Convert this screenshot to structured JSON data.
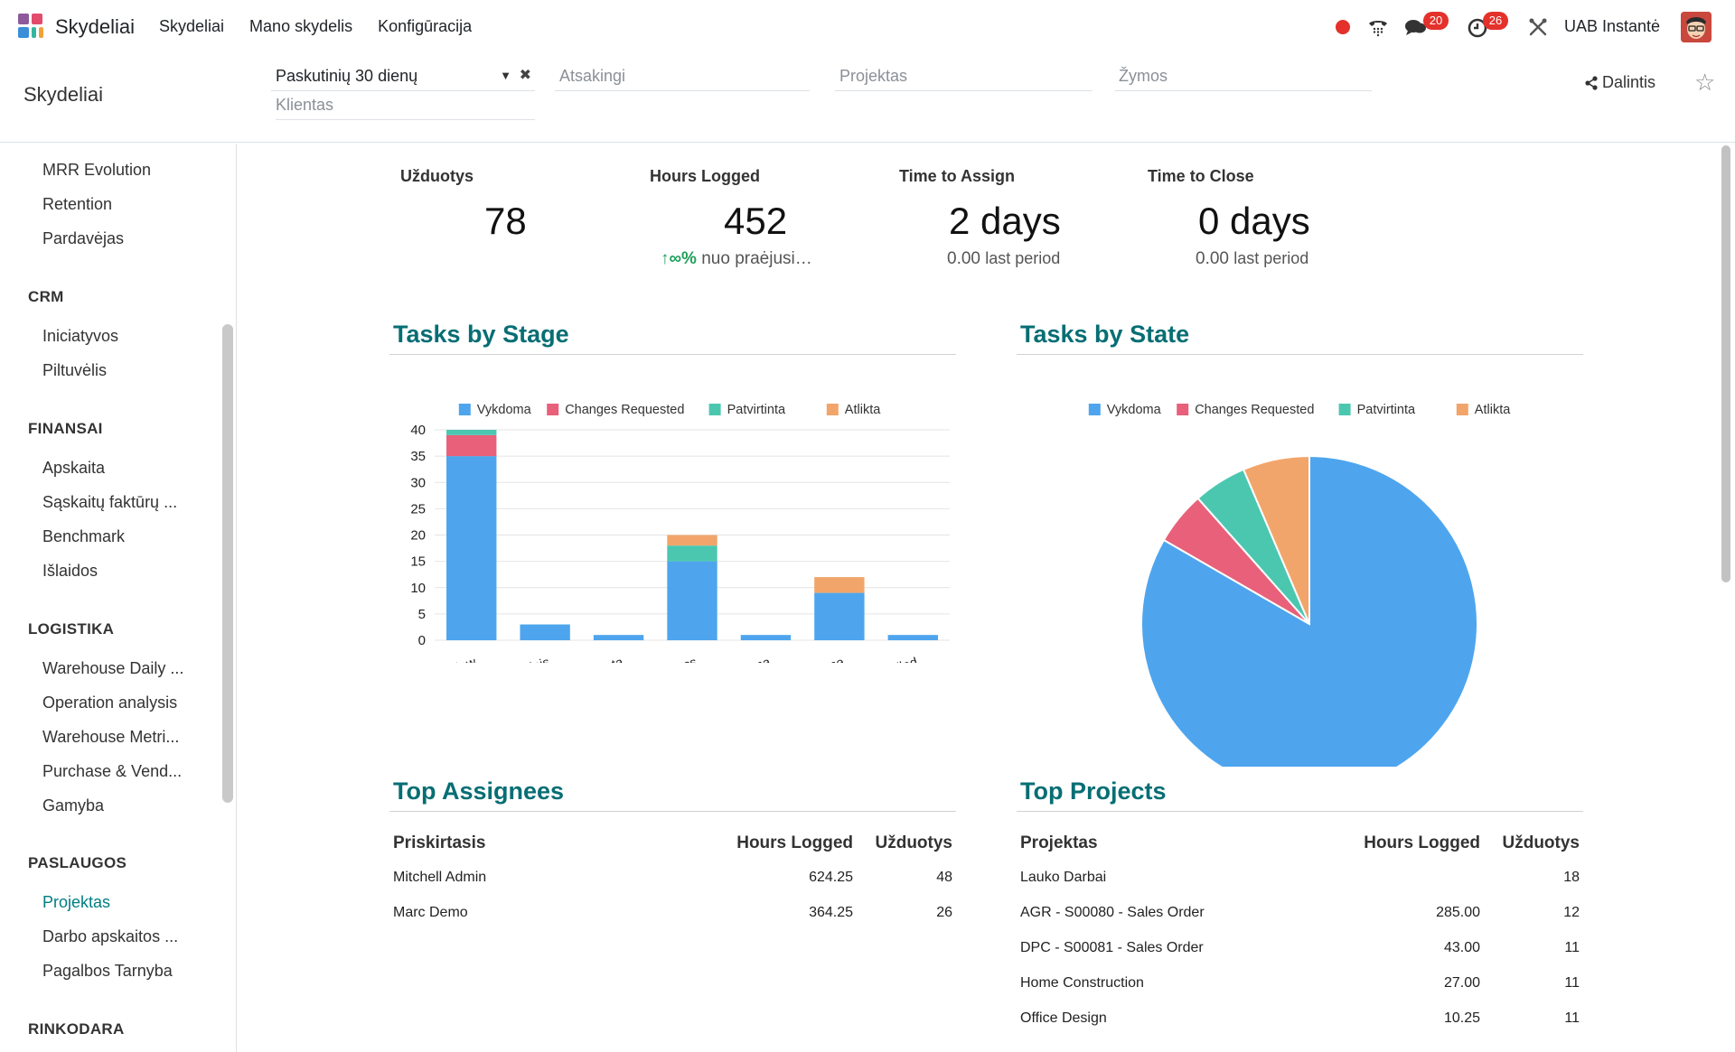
{
  "navbar": {
    "app_name": "Skydeliai",
    "menu": [
      "Skydeliai",
      "Mano skydelis",
      "Konfigūracija"
    ],
    "messages_count": "20",
    "activities_count": "26",
    "company": "UAB Instantė"
  },
  "control": {
    "breadcrumb": "Skydeliai",
    "date_filter": "Paskutinių 30 dienų",
    "client_placeholder": "Klientas",
    "responsible_placeholder": "Atsakingi",
    "project_placeholder": "Projektas",
    "tags_placeholder": "Žymos",
    "share_label": "Dalintis"
  },
  "sidebar": {
    "items_top": [
      "MRR Evolution",
      "Retention",
      "Pardavėjas"
    ],
    "sections": [
      {
        "title": "CRM",
        "items": [
          "Iniciatyvos",
          "Piltuvėlis"
        ]
      },
      {
        "title": "FINANSAI",
        "items": [
          "Apskaita",
          "Sąskaitų faktūrų ...",
          "Benchmark",
          "Išlaidos"
        ]
      },
      {
        "title": "LOGISTIKA",
        "items": [
          "Warehouse Daily ...",
          "Operation analysis",
          "Warehouse Metri...",
          "Purchase & Vend...",
          "Gamyba"
        ]
      },
      {
        "title": "PASLAUGOS",
        "items": [
          "Projektas",
          "Darbo apskaitos ...",
          "Pagalbos Tarnyba"
        ]
      },
      {
        "title": "RINKODARA",
        "items": []
      }
    ],
    "active_item": "Projektas"
  },
  "kpis": [
    {
      "title": "Užduotys",
      "value": "78",
      "sub": ""
    },
    {
      "title": "Hours Logged",
      "value": "452",
      "sub_arrow": "∞%",
      "sub": "nuo praėjusi…"
    },
    {
      "title": "Time to Assign",
      "value": "2 days",
      "sub_value": "0.00",
      "sub": "last period"
    },
    {
      "title": "Time to Close",
      "value": "0 days",
      "sub_value": "0.00",
      "sub": "last period"
    }
  ],
  "colors": {
    "vykdoma": "#4ea5ee",
    "changes_requested": "#e8607a",
    "patvirtinta": "#4bc7b0",
    "atlikta": "#f2a56a",
    "accent": "#076e74"
  },
  "sections": {
    "tasks_by_stage": "Tasks by Stage",
    "tasks_by_state": "Tasks by State",
    "top_assignees": "Top Assignees",
    "top_projects": "Top Projects"
  },
  "chart_data": [
    {
      "type": "bar",
      "stacked": true,
      "title": "Tasks by Stage",
      "categories": [
        "New",
        "Vidinis",
        "Suplanuota",
        "In Progress",
        "Vykdoma",
        "Done",
        "Cancelled"
      ],
      "series": [
        {
          "name": "Vykdoma",
          "color": "#4ea5ee",
          "values": [
            35,
            3,
            1,
            15,
            1,
            9,
            1
          ]
        },
        {
          "name": "Changes Requested",
          "color": "#e8607a",
          "values": [
            4,
            0,
            0,
            0,
            0,
            0,
            0
          ]
        },
        {
          "name": "Patvirtinta",
          "color": "#4bc7b0",
          "values": [
            1,
            0,
            0,
            3,
            0,
            0,
            0
          ]
        },
        {
          "name": "Atlikta",
          "color": "#f2a56a",
          "values": [
            0,
            0,
            0,
            2,
            0,
            3,
            0
          ]
        }
      ],
      "yticks": [
        0,
        5,
        10,
        15,
        20,
        25,
        30,
        35,
        40
      ],
      "ylim": [
        0,
        40
      ],
      "legend": "top",
      "grid": true
    },
    {
      "type": "pie",
      "title": "Tasks by State",
      "labels": [
        "Vykdoma",
        "Changes Requested",
        "Patvirtinta",
        "Atlikta"
      ],
      "values": [
        65,
        4,
        4,
        5
      ],
      "colors": [
        "#4ea5ee",
        "#e8607a",
        "#4bc7b0",
        "#f2a56a"
      ],
      "legend": "top"
    }
  ],
  "top_assignees": {
    "columns": [
      "Priskirtasis",
      "Hours Logged",
      "Užduotys"
    ],
    "rows": [
      [
        "Mitchell Admin",
        "624.25",
        "48"
      ],
      [
        "Marc Demo",
        "364.25",
        "26"
      ]
    ]
  },
  "top_projects": {
    "columns": [
      "Projektas",
      "Hours Logged",
      "Užduotys"
    ],
    "rows": [
      [
        "Lauko Darbai",
        "",
        "18"
      ],
      [
        "AGR - S00080 - Sales Order",
        "285.00",
        "12"
      ],
      [
        "DPC - S00081 - Sales Order",
        "43.00",
        "11"
      ],
      [
        "Home Construction",
        "27.00",
        "11"
      ],
      [
        "Office Design",
        "10.25",
        "11"
      ]
    ]
  }
}
